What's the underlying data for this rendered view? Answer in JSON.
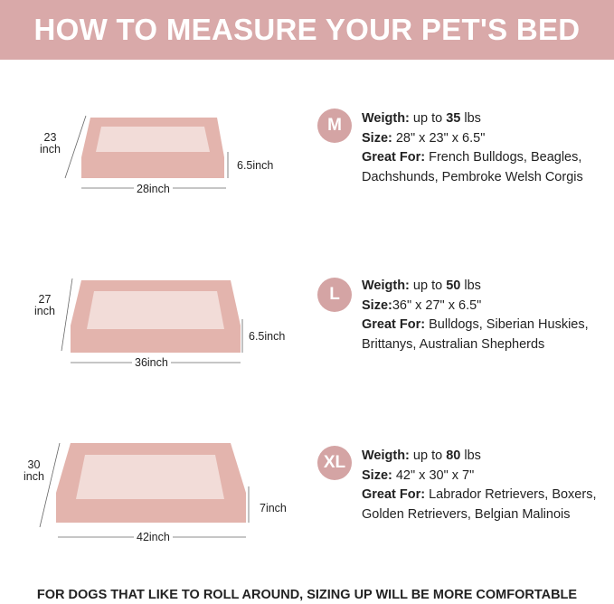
{
  "header": {
    "title": "HOW TO MEASURE YOUR PET'S BED"
  },
  "colors": {
    "accent": "#d9a9a9",
    "bed": "#e6bcb6"
  },
  "sizes": [
    {
      "badge": "M",
      "weight_label": "Weigth:",
      "weight_pre": "up to ",
      "weight_value": "35",
      "weight_unit": " lbs",
      "size_label": "Size:",
      "size_value": " 28\" x 23\" x 6.5\"",
      "great_label": "Great For:",
      "great_value": " French Bulldogs, Beagles,",
      "great_value2": "Dachshunds, Pembroke Welsh Corgis",
      "depth": "23\ninch",
      "width": "28inch",
      "height": "6.5inch"
    },
    {
      "badge": "L",
      "weight_label": "Weigth:",
      "weight_pre": "up to ",
      "weight_value": "50",
      "weight_unit": " lbs",
      "size_label": "Size:",
      "size_value": "36\" x 27\" x 6.5\"",
      "great_label": "Great For:",
      "great_value": " Bulldogs, Siberian Huskies,",
      "great_value2": "Brittanys, Australian Shepherds",
      "depth": "27\ninch",
      "width": "36inch",
      "height": "6.5inch"
    },
    {
      "badge": "XL",
      "weight_label": "Weigth:",
      "weight_pre": "up to ",
      "weight_value": "80",
      "weight_unit": " lbs",
      "size_label": "Size:",
      "size_value": " 42\" x 30\" x 7\"",
      "great_label": "Great For:",
      "great_value": " Labrador Retrievers, Boxers,",
      "great_value2": "Golden Retrievers, Belgian Malinois",
      "depth": "30\ninch",
      "width": "42inch",
      "height": "7inch"
    }
  ],
  "footer": "FOR DOGS THAT LIKE TO ROLL AROUND, SIZING UP WILL BE MORE COMFORTABLE"
}
